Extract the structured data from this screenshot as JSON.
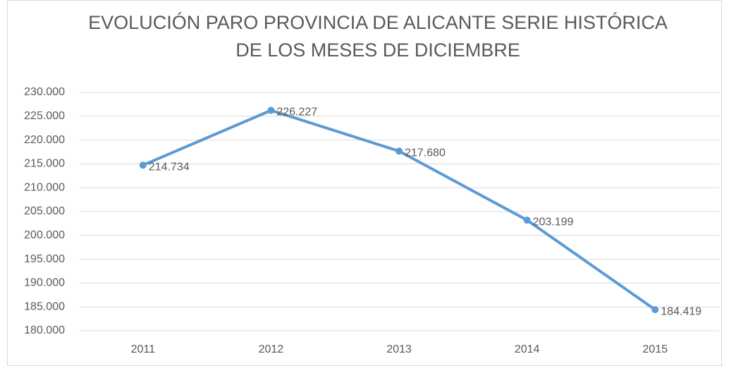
{
  "chart_data": {
    "type": "line",
    "title": [
      "EVOLUCIÓN PARO PROVINCIA DE ALICANTE SERIE HISTÓRICA",
      "DE LOS MESES DE DICIEMBRE"
    ],
    "categories": [
      "2011",
      "2012",
      "2013",
      "2014",
      "2015"
    ],
    "values": [
      214734,
      226227,
      217680,
      203199,
      184419
    ],
    "value_labels": [
      "214.734",
      "226.227",
      "217.680",
      "203.199",
      "184.419"
    ],
    "color": "#5b9bd5",
    "ylim": [
      180000,
      230000
    ],
    "yticks": [
      {
        "value": 180000,
        "label": "180.000"
      },
      {
        "value": 185000,
        "label": "185.000"
      },
      {
        "value": 190000,
        "label": "190.000"
      },
      {
        "value": 195000,
        "label": "195.000"
      },
      {
        "value": 200000,
        "label": "200.000"
      },
      {
        "value": 205000,
        "label": "205.000"
      },
      {
        "value": 210000,
        "label": "210.000"
      },
      {
        "value": 215000,
        "label": "215.000"
      },
      {
        "value": 220000,
        "label": "220.000"
      },
      {
        "value": 225000,
        "label": "225.000"
      },
      {
        "value": 230000,
        "label": "230.000"
      }
    ],
    "grid": true
  }
}
